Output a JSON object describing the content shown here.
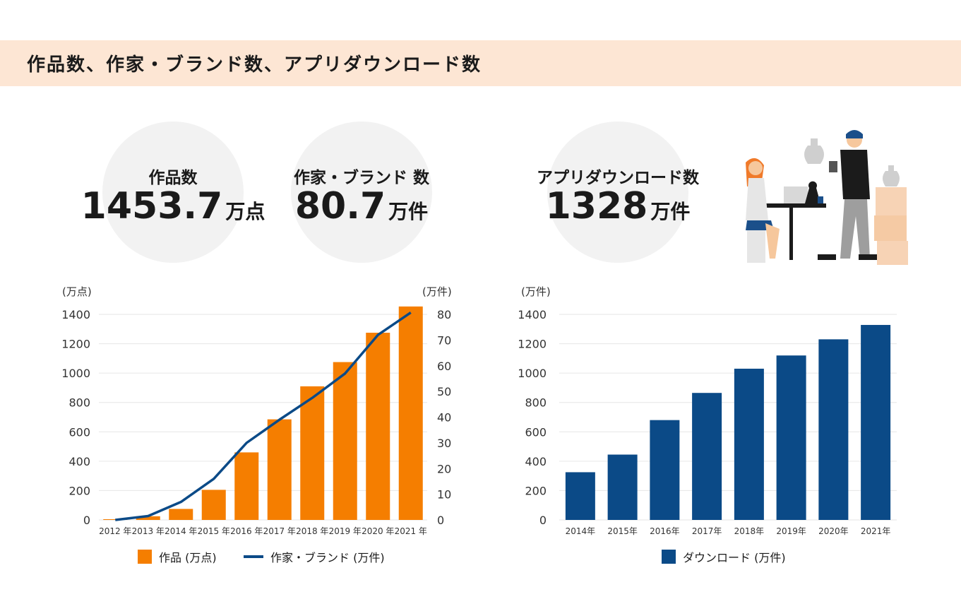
{
  "header": {
    "title": "作品数、作家・ブランド数、アプリダウンロード数"
  },
  "stats": [
    {
      "label": "作品数",
      "value": "1453.7",
      "unit": "万点"
    },
    {
      "label": "作家・ブランド 数",
      "value": "80.7",
      "unit": "万件"
    },
    {
      "label": "アプリダウンロード数",
      "value": "1328",
      "unit": "万件"
    }
  ],
  "colors": {
    "orange": "#f57e00",
    "navy": "#0b4a87",
    "banner": "#fde6d4",
    "circle": "#f2f2f2"
  },
  "chart_data": [
    {
      "type": "bar",
      "categories": [
        "2012 年",
        "2013 年",
        "2014 年",
        "2015 年",
        "2016 年",
        "2017 年",
        "2018 年",
        "2019 年",
        "2020 年",
        "2021 年"
      ],
      "series": [
        {
          "name": "作品 (万点)",
          "type": "bar",
          "axis": "left",
          "values": [
            5,
            25,
            75,
            205,
            460,
            685,
            910,
            1075,
            1275,
            1453.7
          ]
        },
        {
          "name": "作家・ブランド (万件)",
          "type": "line",
          "axis": "right",
          "values": [
            0,
            1.5,
            7,
            16,
            30,
            39,
            47.5,
            57,
            72,
            80.7
          ]
        }
      ],
      "y_left": {
        "label": "(万点)",
        "ylim": [
          0,
          1400
        ],
        "ticks": [
          0,
          200,
          400,
          600,
          800,
          1000,
          1200,
          1400
        ]
      },
      "y_right": {
        "label": "(万件)",
        "ylim": [
          0,
          80
        ],
        "ticks": [
          0,
          10,
          20,
          30,
          40,
          50,
          60,
          70,
          80
        ]
      },
      "legend": {
        "bar_label": "作品 (万点)",
        "line_label": "作家・ブランド (万件)"
      }
    },
    {
      "type": "bar",
      "categories": [
        "2014年",
        "2015年",
        "2016年",
        "2017年",
        "2018年",
        "2019年",
        "2020年",
        "2021年"
      ],
      "series": [
        {
          "name": "ダウンロード (万件)",
          "values": [
            325,
            445,
            680,
            865,
            1030,
            1120,
            1230,
            1328
          ]
        }
      ],
      "y_left": {
        "label": "(万件)",
        "ylim": [
          0,
          1400
        ],
        "ticks": [
          0,
          200,
          400,
          600,
          800,
          1000,
          1200,
          1400
        ]
      },
      "legend": {
        "bar_label": "ダウンロード (万件)"
      }
    }
  ]
}
